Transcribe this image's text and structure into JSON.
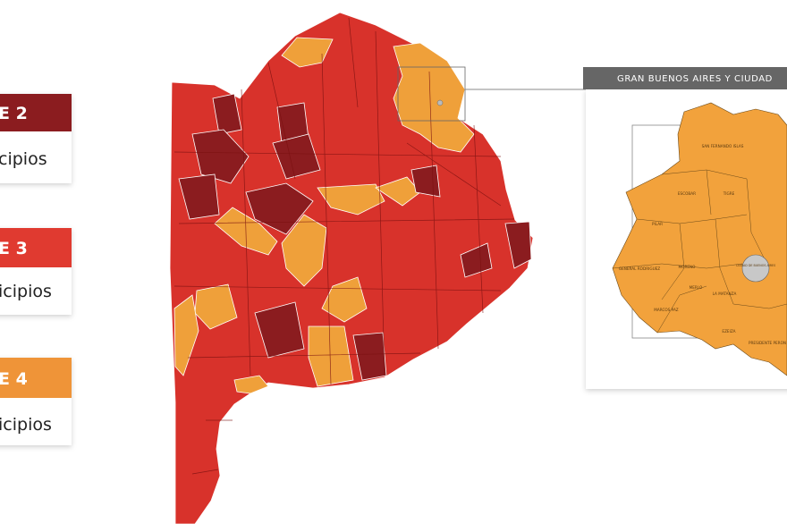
{
  "legend": [
    {
      "label": "E 2",
      "count": "cipios"
    },
    {
      "label": "E 3",
      "count": "icipios"
    },
    {
      "label": "E 4",
      "count": "icipios"
    }
  ],
  "inset": {
    "title": "GRAN BUENOS AIRES Y CIUDAD",
    "labels": [
      "SAN FERNANDO ISLAS",
      "ESCOBAR",
      "PILAR",
      "TIGRE",
      "GENERAL RODRIGUEZ",
      "MORENO",
      "MERLO",
      "LA MATANZA",
      "MARCOS PAZ",
      "EZEIZA",
      "CIUDAD DE BUENOS AIRES",
      "PRESIDENTE PERON"
    ]
  }
}
